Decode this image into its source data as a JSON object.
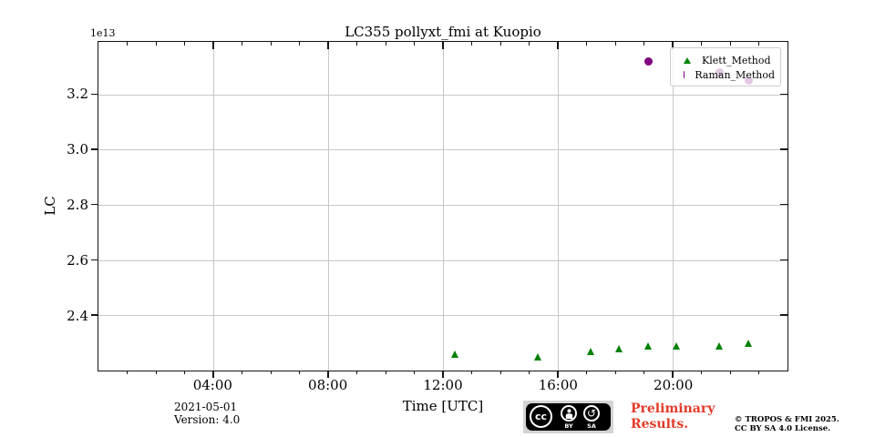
{
  "title": "LC355 pollyxt_fmi at Kuopio",
  "offset_label": "1e13",
  "xlabel": "Time [UTC]",
  "ylabel": "LC",
  "footer": {
    "date": "2021-05-01",
    "version": "Version: 4.0",
    "preliminary_line1": "Preliminary",
    "preliminary_line2": "Results.",
    "copyright_line1": "© TROPOS & FMI 2025.",
    "copyright_line2": "CC BY SA 4.0 License.",
    "cc_badge": {
      "cc_text": "cc",
      "by_label": "BY",
      "sa_label": "SA",
      "sa_arrow_glyph": "↺"
    }
  },
  "chart_data": {
    "type": "scatter",
    "title": "LC355 pollyxt_fmi at Kuopio",
    "xlabel": "Time [UTC]",
    "ylabel": "LC",
    "y_offset_factor": "1e13",
    "date": "2021-05-01",
    "xlim_hours": [
      0,
      24
    ],
    "ylim": [
      2.2,
      3.39
    ],
    "x_major_tick_hours": [
      4,
      8,
      12,
      16,
      20
    ],
    "x_major_ticks": [
      "04:00",
      "08:00",
      "12:00",
      "16:00",
      "20:00"
    ],
    "x_minor_tick_interval_hours": 1,
    "y_ticks": [
      2.4,
      2.6,
      2.8,
      3.0,
      3.2
    ],
    "y_tick_labels": [
      "2.4",
      "2.6",
      "2.8",
      "3.0",
      "3.2"
    ],
    "grid": true,
    "legend_position": "upper right",
    "series": [
      {
        "name": "Klett_Method",
        "marker": "triangle",
        "color": "#008000",
        "points": [
          {
            "time": "12:25",
            "hour": 12.42,
            "value_e13": 2.26
          },
          {
            "time": "15:20",
            "hour": 15.33,
            "value_e13": 2.25
          },
          {
            "time": "17:10",
            "hour": 17.17,
            "value_e13": 2.27
          },
          {
            "time": "18:09",
            "hour": 18.15,
            "value_e13": 2.28
          },
          {
            "time": "19:09",
            "hour": 19.15,
            "value_e13": 2.29
          },
          {
            "time": "20:09",
            "hour": 20.15,
            "value_e13": 2.29
          },
          {
            "time": "21:39",
            "hour": 21.65,
            "value_e13": 2.29
          },
          {
            "time": "22:39",
            "hour": 22.65,
            "value_e13": 2.3
          }
        ]
      },
      {
        "name": "Raman_Method",
        "marker": "circle",
        "color": "#800080",
        "points": [
          {
            "time": "19:09",
            "hour": 19.15,
            "value_e13": 3.32
          },
          {
            "time": "21:39",
            "hour": 21.65,
            "value_e13": 3.28,
            "occluded_by_legend": true
          },
          {
            "time": "22:39",
            "hour": 22.65,
            "value_e13": 3.25,
            "occluded_by_legend": true
          }
        ]
      }
    ]
  }
}
